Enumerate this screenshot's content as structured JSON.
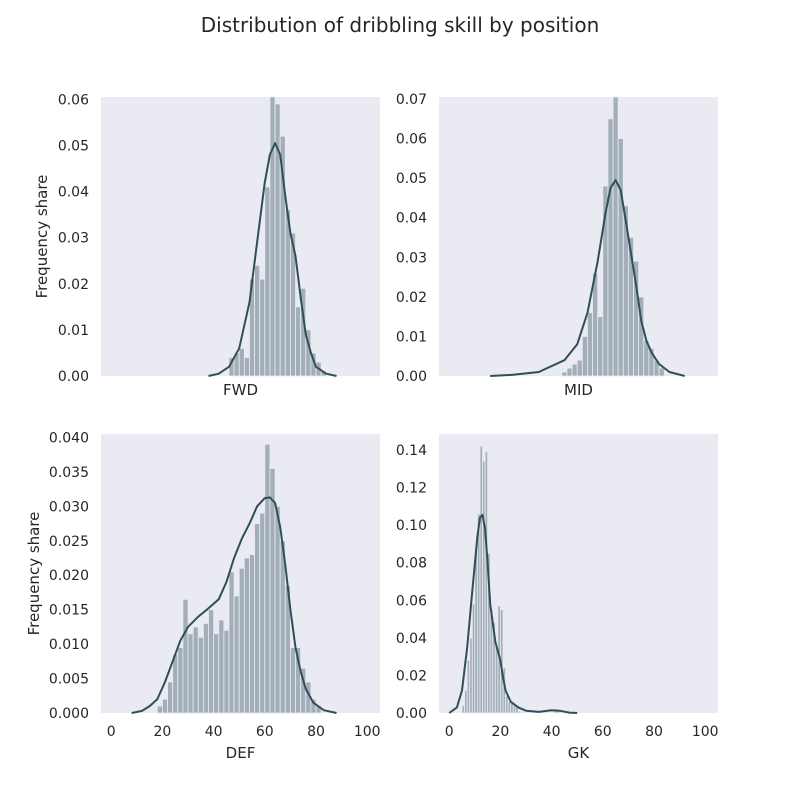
{
  "figure": {
    "title": "Distribution of dribbling skill by position"
  },
  "colors": {
    "bar": "#a3afb8",
    "kde": "#2f4f57",
    "panel": "#eaeaf2"
  },
  "chart_data": [
    {
      "type": "histogram",
      "panel": "FWD",
      "xlabel": "FWD",
      "ylabel": "Frequency share",
      "xlim": [
        -4,
        105
      ],
      "ylim": [
        0,
        0.0605
      ],
      "yticks": [
        "0.00",
        "0.01",
        "0.02",
        "0.03",
        "0.04",
        "0.05",
        "0.06"
      ],
      "xticks": [],
      "grid": false,
      "bins": [
        {
          "x0": 46,
          "x1": 48,
          "value": 0.004
        },
        {
          "x0": 48,
          "x1": 50,
          "value": 0.005
        },
        {
          "x0": 50,
          "x1": 52,
          "value": 0.006
        },
        {
          "x0": 52,
          "x1": 54,
          "value": 0.004
        },
        {
          "x0": 54,
          "x1": 56,
          "value": 0.021
        },
        {
          "x0": 56,
          "x1": 58,
          "value": 0.024
        },
        {
          "x0": 58,
          "x1": 60,
          "value": 0.021
        },
        {
          "x0": 60,
          "x1": 62,
          "value": 0.041
        },
        {
          "x0": 62,
          "x1": 64,
          "value": 0.062
        },
        {
          "x0": 64,
          "x1": 66,
          "value": 0.059
        },
        {
          "x0": 66,
          "x1": 68,
          "value": 0.052
        },
        {
          "x0": 68,
          "x1": 70,
          "value": 0.036
        },
        {
          "x0": 70,
          "x1": 72,
          "value": 0.031
        },
        {
          "x0": 72,
          "x1": 74,
          "value": 0.015
        },
        {
          "x0": 74,
          "x1": 76,
          "value": 0.019
        },
        {
          "x0": 76,
          "x1": 78,
          "value": 0.01
        },
        {
          "x0": 78,
          "x1": 80,
          "value": 0.005
        },
        {
          "x0": 80,
          "x1": 82,
          "value": 0.003
        },
        {
          "x0": 82,
          "x1": 84,
          "value": 0.001
        }
      ],
      "kde": [
        [
          38,
          0
        ],
        [
          42,
          0.0005
        ],
        [
          46,
          0.002
        ],
        [
          50,
          0.006
        ],
        [
          54,
          0.016
        ],
        [
          57,
          0.029
        ],
        [
          60,
          0.042
        ],
        [
          62,
          0.048
        ],
        [
          64,
          0.0505
        ],
        [
          66,
          0.048
        ],
        [
          68,
          0.039
        ],
        [
          70,
          0.031
        ],
        [
          72,
          0.026
        ],
        [
          74,
          0.017
        ],
        [
          76,
          0.009
        ],
        [
          78,
          0.005
        ],
        [
          80,
          0.002
        ],
        [
          84,
          0.0005
        ],
        [
          88,
          0
        ]
      ]
    },
    {
      "type": "histogram",
      "panel": "MID",
      "xlabel": "MID",
      "ylabel": "",
      "xlim": [
        -4,
        105
      ],
      "ylim": [
        0,
        0.0705
      ],
      "yticks": [
        "0.00",
        "0.01",
        "0.02",
        "0.03",
        "0.04",
        "0.05",
        "0.06",
        "0.07"
      ],
      "xticks": [],
      "grid": false,
      "bins": [
        {
          "x0": 44,
          "x1": 46,
          "value": 0.001
        },
        {
          "x0": 46,
          "x1": 48,
          "value": 0.002
        },
        {
          "x0": 48,
          "x1": 50,
          "value": 0.003
        },
        {
          "x0": 50,
          "x1": 52,
          "value": 0.004
        },
        {
          "x0": 52,
          "x1": 54,
          "value": 0.01
        },
        {
          "x0": 54,
          "x1": 56,
          "value": 0.016
        },
        {
          "x0": 56,
          "x1": 58,
          "value": 0.026
        },
        {
          "x0": 58,
          "x1": 60,
          "value": 0.015
        },
        {
          "x0": 60,
          "x1": 62,
          "value": 0.048
        },
        {
          "x0": 62,
          "x1": 64,
          "value": 0.065
        },
        {
          "x0": 64,
          "x1": 66,
          "value": 0.071
        },
        {
          "x0": 66,
          "x1": 68,
          "value": 0.06
        },
        {
          "x0": 68,
          "x1": 70,
          "value": 0.043
        },
        {
          "x0": 70,
          "x1": 72,
          "value": 0.035
        },
        {
          "x0": 72,
          "x1": 74,
          "value": 0.029
        },
        {
          "x0": 74,
          "x1": 76,
          "value": 0.02
        },
        {
          "x0": 76,
          "x1": 78,
          "value": 0.009
        },
        {
          "x0": 78,
          "x1": 80,
          "value": 0.007
        },
        {
          "x0": 80,
          "x1": 82,
          "value": 0.004
        },
        {
          "x0": 82,
          "x1": 84,
          "value": 0.002
        }
      ],
      "kde": [
        [
          16,
          0
        ],
        [
          25,
          0.0003
        ],
        [
          35,
          0.001
        ],
        [
          45,
          0.004
        ],
        [
          50,
          0.008
        ],
        [
          54,
          0.016
        ],
        [
          58,
          0.029
        ],
        [
          61,
          0.041
        ],
        [
          63,
          0.0475
        ],
        [
          65,
          0.0495
        ],
        [
          67,
          0.047
        ],
        [
          69,
          0.039
        ],
        [
          71,
          0.031
        ],
        [
          73,
          0.023
        ],
        [
          75,
          0.014
        ],
        [
          77,
          0.009
        ],
        [
          79,
          0.006
        ],
        [
          82,
          0.003
        ],
        [
          86,
          0.001
        ],
        [
          92,
          0
        ]
      ]
    },
    {
      "type": "histogram",
      "panel": "DEF",
      "xlabel": "DEF",
      "ylabel": "Frequency share",
      "xlim": [
        -4,
        105
      ],
      "ylim": [
        0,
        0.0405
      ],
      "yticks": [
        "0.000",
        "0.005",
        "0.010",
        "0.015",
        "0.020",
        "0.025",
        "0.030",
        "0.035",
        "0.040"
      ],
      "xticks": [
        "0",
        "20",
        "40",
        "60",
        "80",
        "100"
      ],
      "grid": false,
      "bins": [
        {
          "x0": 18,
          "x1": 20,
          "value": 0.001
        },
        {
          "x0": 20,
          "x1": 22,
          "value": 0.002
        },
        {
          "x0": 22,
          "x1": 24,
          "value": 0.0045
        },
        {
          "x0": 24,
          "x1": 26,
          "value": 0.0085
        },
        {
          "x0": 26,
          "x1": 28,
          "value": 0.0095
        },
        {
          "x0": 28,
          "x1": 30,
          "value": 0.0165
        },
        {
          "x0": 30,
          "x1": 32,
          "value": 0.0115
        },
        {
          "x0": 32,
          "x1": 34,
          "value": 0.0125
        },
        {
          "x0": 34,
          "x1": 36,
          "value": 0.011
        },
        {
          "x0": 36,
          "x1": 38,
          "value": 0.013
        },
        {
          "x0": 38,
          "x1": 40,
          "value": 0.015
        },
        {
          "x0": 40,
          "x1": 42,
          "value": 0.0115
        },
        {
          "x0": 42,
          "x1": 44,
          "value": 0.0135
        },
        {
          "x0": 44,
          "x1": 46,
          "value": 0.012
        },
        {
          "x0": 46,
          "x1": 48,
          "value": 0.0205
        },
        {
          "x0": 48,
          "x1": 50,
          "value": 0.017
        },
        {
          "x0": 50,
          "x1": 52,
          "value": 0.021
        },
        {
          "x0": 52,
          "x1": 54,
          "value": 0.0225
        },
        {
          "x0": 54,
          "x1": 56,
          "value": 0.023
        },
        {
          "x0": 56,
          "x1": 58,
          "value": 0.0275
        },
        {
          "x0": 58,
          "x1": 60,
          "value": 0.029
        },
        {
          "x0": 60,
          "x1": 62,
          "value": 0.039
        },
        {
          "x0": 62,
          "x1": 64,
          "value": 0.0355
        },
        {
          "x0": 64,
          "x1": 66,
          "value": 0.03
        },
        {
          "x0": 66,
          "x1": 68,
          "value": 0.025
        },
        {
          "x0": 68,
          "x1": 70,
          "value": 0.0185
        },
        {
          "x0": 70,
          "x1": 72,
          "value": 0.0095
        },
        {
          "x0": 72,
          "x1": 74,
          "value": 0.0095
        },
        {
          "x0": 74,
          "x1": 76,
          "value": 0.0065
        },
        {
          "x0": 76,
          "x1": 78,
          "value": 0.0045
        },
        {
          "x0": 78,
          "x1": 80,
          "value": 0.002
        },
        {
          "x0": 80,
          "x1": 82,
          "value": 0.001
        }
      ],
      "kde": [
        [
          8,
          0
        ],
        [
          12,
          0.0003
        ],
        [
          15,
          0.001
        ],
        [
          18,
          0.002
        ],
        [
          21,
          0.0045
        ],
        [
          24,
          0.0075
        ],
        [
          27,
          0.0105
        ],
        [
          30,
          0.0125
        ],
        [
          34,
          0.014
        ],
        [
          38,
          0.0152
        ],
        [
          42,
          0.0165
        ],
        [
          45,
          0.019
        ],
        [
          48,
          0.0225
        ],
        [
          51,
          0.0253
        ],
        [
          54,
          0.0275
        ],
        [
          57,
          0.03
        ],
        [
          60,
          0.0312
        ],
        [
          62,
          0.0313
        ],
        [
          64,
          0.0305
        ],
        [
          66,
          0.027
        ],
        [
          68,
          0.0215
        ],
        [
          70,
          0.015
        ],
        [
          72,
          0.0095
        ],
        [
          74,
          0.006
        ],
        [
          76,
          0.0035
        ],
        [
          79,
          0.0015
        ],
        [
          83,
          0.0004
        ],
        [
          88,
          0
        ]
      ]
    },
    {
      "type": "histogram",
      "panel": "GK",
      "xlabel": "GK",
      "ylabel": "",
      "xlim": [
        -4,
        105
      ],
      "ylim": [
        0,
        0.1485
      ],
      "yticks": [
        "0.00",
        "0.02",
        "0.04",
        "0.06",
        "0.08",
        "0.10",
        "0.12",
        "0.14"
      ],
      "xticks": [
        "0",
        "20",
        "40",
        "60",
        "80",
        "100"
      ],
      "grid": false,
      "bins": [
        {
          "x0": 5,
          "x1": 6,
          "value": 0.004
        },
        {
          "x0": 6,
          "x1": 7,
          "value": 0.012
        },
        {
          "x0": 7,
          "x1": 8,
          "value": 0.028
        },
        {
          "x0": 8,
          "x1": 9,
          "value": 0.04
        },
        {
          "x0": 9,
          "x1": 10,
          "value": 0.058
        },
        {
          "x0": 10,
          "x1": 11,
          "value": 0.087
        },
        {
          "x0": 11,
          "x1": 12,
          "value": 0.106
        },
        {
          "x0": 12,
          "x1": 13,
          "value": 0.142
        },
        {
          "x0": 13,
          "x1": 14,
          "value": 0.134
        },
        {
          "x0": 14,
          "x1": 15,
          "value": 0.139
        },
        {
          "x0": 15,
          "x1": 16,
          "value": 0.085
        },
        {
          "x0": 16,
          "x1": 17,
          "value": 0.055
        },
        {
          "x0": 17,
          "x1": 18,
          "value": 0.048
        },
        {
          "x0": 18,
          "x1": 19,
          "value": 0.035
        },
        {
          "x0": 19,
          "x1": 20,
          "value": 0.057
        },
        {
          "x0": 20,
          "x1": 21,
          "value": 0.055
        },
        {
          "x0": 21,
          "x1": 22,
          "value": 0.024
        },
        {
          "x0": 22,
          "x1": 23,
          "value": 0.009
        },
        {
          "x0": 23,
          "x1": 24,
          "value": 0.006
        },
        {
          "x0": 24,
          "x1": 25,
          "value": 0.006
        },
        {
          "x0": 25,
          "x1": 26,
          "value": 0.004
        },
        {
          "x0": 26,
          "x1": 27,
          "value": 0.003
        },
        {
          "x0": 27,
          "x1": 28,
          "value": 0.001
        },
        {
          "x0": 41,
          "x1": 42,
          "value": 0.002
        },
        {
          "x0": 42,
          "x1": 43,
          "value": 0.002
        }
      ],
      "kde": [
        [
          0,
          0
        ],
        [
          3,
          0.003
        ],
        [
          5,
          0.012
        ],
        [
          7,
          0.035
        ],
        [
          9,
          0.065
        ],
        [
          11,
          0.094
        ],
        [
          12,
          0.104
        ],
        [
          13,
          0.1055
        ],
        [
          14,
          0.098
        ],
        [
          15,
          0.08
        ],
        [
          16,
          0.058
        ],
        [
          18,
          0.038
        ],
        [
          20,
          0.028
        ],
        [
          21,
          0.019
        ],
        [
          22,
          0.012
        ],
        [
          24,
          0.006
        ],
        [
          27,
          0.003
        ],
        [
          30,
          0.0012
        ],
        [
          35,
          0.0006
        ],
        [
          40,
          0.0015
        ],
        [
          43,
          0.0012
        ],
        [
          47,
          0.0002
        ],
        [
          50,
          0
        ]
      ]
    }
  ]
}
